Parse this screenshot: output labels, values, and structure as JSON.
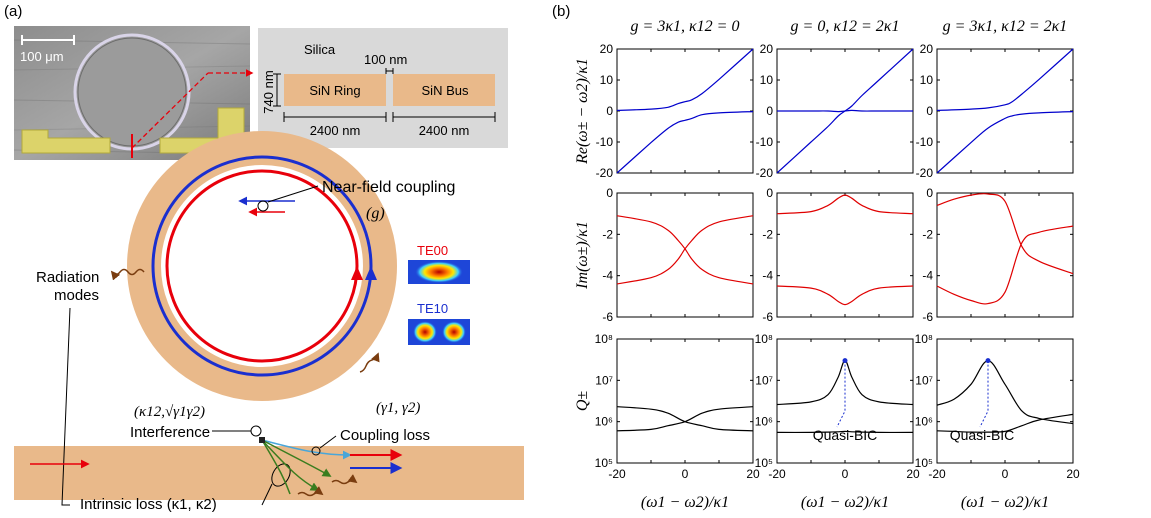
{
  "panel_a": {
    "label": "(a)",
    "micrograph": {
      "scale_bar": "100 μm"
    },
    "cross_section": {
      "cladding": "Silica",
      "gap": "100 nm",
      "height": "740 nm",
      "ring_label": "SiN Ring",
      "bus_label": "SiN Bus",
      "ring_width": "2400 nm",
      "bus_width": "2400 nm"
    },
    "schematic": {
      "near_field": "Near-field coupling",
      "near_field_symbol": "(g)",
      "radiation": "Radiation\nmodes",
      "radiation_l1": "Radiation",
      "radiation_l2": "modes",
      "interference_params": "(κ12,√γ1γ2)",
      "interference": "Interference",
      "coupling_params": "(γ1, γ2)",
      "coupling_loss": "Coupling loss",
      "intrinsic": "Intrinsic loss (κ1, κ2)",
      "mode1": "TE00",
      "mode2": "TE10",
      "colors": {
        "te00": "#e8000b",
        "te10": "#1a2fcf",
        "ring": "#e9b98a",
        "bus": "#e9b98a"
      }
    }
  },
  "panel_b": {
    "label": "(b)",
    "column_titles": [
      "g = 3κ1, κ12 = 0",
      "g = 0, κ12 = 2κ1",
      "g = 3κ1, κ12 = 2κ1"
    ],
    "row_ylabels": [
      "Re(ω± − ω2)/κ1",
      "Im(ω±)/κ1",
      "Q±"
    ],
    "xlabel": "(ω1 − ω2)/κ1",
    "x_ticks": [
      "-20",
      "0",
      "20"
    ],
    "re_ticks": [
      "20",
      "10",
      "0",
      "-10",
      "-20"
    ],
    "im_ticks": [
      "0",
      "-2",
      "-4",
      "-6"
    ],
    "q_ticks": [
      "10⁸",
      "10⁷",
      "10⁶",
      "10⁵"
    ],
    "annotation": "Quasi-BIC",
    "colors": {
      "re": "#0000cc",
      "im": "#e00000",
      "q": "#000000"
    }
  },
  "chart_data": [
    {
      "type": "line",
      "title": "g = 3κ1, κ12 = 0",
      "ylabel": "Re(ω± − ω2)/κ1",
      "xlabel": "",
      "xlim": [
        -20,
        20
      ],
      "ylim": [
        -20,
        20
      ],
      "series": [
        {
          "x": [
            -20,
            -10,
            -5,
            -2,
            0,
            2,
            5,
            10,
            20
          ],
          "values": [
            0.2,
            0.6,
            1.2,
            2.4,
            3.0,
            3.6,
            5.6,
            10.2,
            20.0
          ]
        },
        {
          "x": [
            -20,
            -10,
            -5,
            -2,
            0,
            2,
            5,
            10,
            20
          ],
          "values": [
            -20.0,
            -10.2,
            -5.6,
            -3.6,
            -3.0,
            -2.4,
            -1.2,
            -0.6,
            -0.2
          ]
        }
      ]
    },
    {
      "type": "line",
      "title": "g = 0, κ12 = 2κ1",
      "ylabel": "",
      "xlabel": "",
      "xlim": [
        -20,
        20
      ],
      "ylim": [
        -20,
        20
      ],
      "series": [
        {
          "x": [
            -20,
            -10,
            -5,
            -2,
            0,
            2,
            5,
            10,
            20
          ],
          "values": [
            -20,
            -10,
            -5,
            -1.6,
            0,
            1.6,
            5,
            10,
            20
          ]
        },
        {
          "x": [
            -20,
            -10,
            -5,
            -2,
            0,
            2,
            5,
            10,
            20
          ],
          "values": [
            0,
            0,
            0,
            -0.2,
            0,
            0.2,
            0,
            0,
            0
          ]
        }
      ]
    },
    {
      "type": "line",
      "title": "g = 3κ1, κ12 = 2κ1",
      "ylabel": "",
      "xlabel": "",
      "xlim": [
        -20,
        20
      ],
      "ylim": [
        -20,
        20
      ],
      "series": [
        {
          "x": [
            -20,
            -10,
            -5,
            0,
            2,
            5,
            10,
            20
          ],
          "values": [
            0.2,
            0.6,
            1.0,
            2.0,
            2.9,
            5.5,
            10.2,
            20.0
          ]
        },
        {
          "x": [
            -20,
            -10,
            -5,
            0,
            2,
            5,
            10,
            20
          ],
          "values": [
            -20.0,
            -10.2,
            -5.5,
            -2.4,
            -1.6,
            -1.0,
            -0.6,
            -0.2
          ]
        }
      ]
    },
    {
      "type": "line",
      "title": "",
      "ylabel": "Im(ω±)/κ1",
      "xlabel": "",
      "xlim": [
        -20,
        20
      ],
      "ylim": [
        -6,
        0
      ],
      "series": [
        {
          "x": [
            -20,
            -10,
            -5,
            -2,
            0,
            2,
            5,
            10,
            20
          ],
          "values": [
            -1.1,
            -1.4,
            -1.8,
            -2.3,
            -2.7,
            -3.2,
            -3.7,
            -4.1,
            -4.4
          ]
        },
        {
          "x": [
            -20,
            -10,
            -5,
            -2,
            0,
            2,
            5,
            10,
            20
          ],
          "values": [
            -4.4,
            -4.1,
            -3.7,
            -3.2,
            -2.7,
            -2.3,
            -1.8,
            -1.4,
            -1.1
          ]
        }
      ]
    },
    {
      "type": "line",
      "title": "",
      "ylabel": "",
      "xlabel": "",
      "xlim": [
        -20,
        20
      ],
      "ylim": [
        -6,
        0
      ],
      "series": [
        {
          "x": [
            -20,
            -10,
            -5,
            -2,
            0,
            2,
            5,
            10,
            20
          ],
          "values": [
            -1.0,
            -0.9,
            -0.6,
            -0.25,
            -0.1,
            -0.25,
            -0.6,
            -0.9,
            -1.0
          ]
        },
        {
          "x": [
            -20,
            -10,
            -5,
            -2,
            0,
            2,
            5,
            10,
            20
          ],
          "values": [
            -4.5,
            -4.6,
            -4.9,
            -5.25,
            -5.4,
            -5.25,
            -4.9,
            -4.6,
            -4.5
          ]
        }
      ]
    },
    {
      "type": "line",
      "title": "",
      "ylabel": "",
      "xlabel": "",
      "xlim": [
        -20,
        20
      ],
      "ylim": [
        -6,
        0
      ],
      "series": [
        {
          "x": [
            -20,
            -15,
            -10,
            -5,
            0,
            5,
            10,
            20
          ],
          "values": [
            -0.6,
            -0.3,
            -0.1,
            -0.05,
            -0.4,
            -2.6,
            -3.3,
            -3.9
          ]
        },
        {
          "x": [
            -20,
            -15,
            -10,
            -5,
            0,
            5,
            10,
            20
          ],
          "values": [
            -4.5,
            -4.9,
            -5.2,
            -5.35,
            -4.8,
            -2.4,
            -1.9,
            -1.6
          ]
        }
      ]
    },
    {
      "type": "line",
      "title": "",
      "ylabel": "Q±",
      "xlabel": "(ω1 − ω2)/κ1",
      "xlim": [
        -20,
        20
      ],
      "ylim": [
        100000,
        100000000
      ],
      "log_y": true,
      "series": [
        {
          "x": [
            -20,
            -10,
            -5,
            0,
            5,
            10,
            20
          ],
          "values": [
            2300000,
            2000000,
            1600000,
            1000000,
            800000,
            650000,
            600000
          ]
        },
        {
          "x": [
            -20,
            -10,
            -5,
            0,
            5,
            10,
            20
          ],
          "values": [
            600000,
            650000,
            800000,
            1000000,
            1600000,
            2000000,
            2300000
          ]
        }
      ]
    },
    {
      "type": "line",
      "title": "",
      "ylabel": "",
      "xlabel": "(ω1 − ω2)/κ1",
      "xlim": [
        -20,
        20
      ],
      "ylim": [
        100000,
        100000000
      ],
      "log_y": true,
      "series": [
        {
          "x": [
            -20,
            -10,
            -5,
            -2,
            0,
            2,
            5,
            10,
            20
          ],
          "values": [
            2600000,
            3000000,
            4500000,
            12000000,
            30000000,
            12000000,
            4500000,
            3000000,
            2600000
          ]
        },
        {
          "x": [
            -20,
            -10,
            -5,
            -2,
            0,
            2,
            5,
            10,
            20
          ],
          "values": [
            550000,
            550000,
            560000,
            570000,
            580000,
            570000,
            560000,
            550000,
            550000
          ]
        }
      ]
    },
    {
      "type": "line",
      "title": "",
      "ylabel": "",
      "xlabel": "(ω1 − ω2)/κ1",
      "xlim": [
        -20,
        20
      ],
      "ylim": [
        100000,
        100000000
      ],
      "log_y": true,
      "series": [
        {
          "x": [
            -20,
            -15,
            -10,
            -5,
            0,
            5,
            10,
            20
          ],
          "values": [
            2500000,
            3500000,
            8000000,
            30000000,
            8000000,
            1800000,
            1200000,
            900000
          ]
        },
        {
          "x": [
            -20,
            -15,
            -10,
            -5,
            0,
            5,
            10,
            20
          ],
          "values": [
            600000,
            580000,
            560000,
            560000,
            580000,
            800000,
            1100000,
            1500000
          ]
        }
      ]
    }
  ]
}
